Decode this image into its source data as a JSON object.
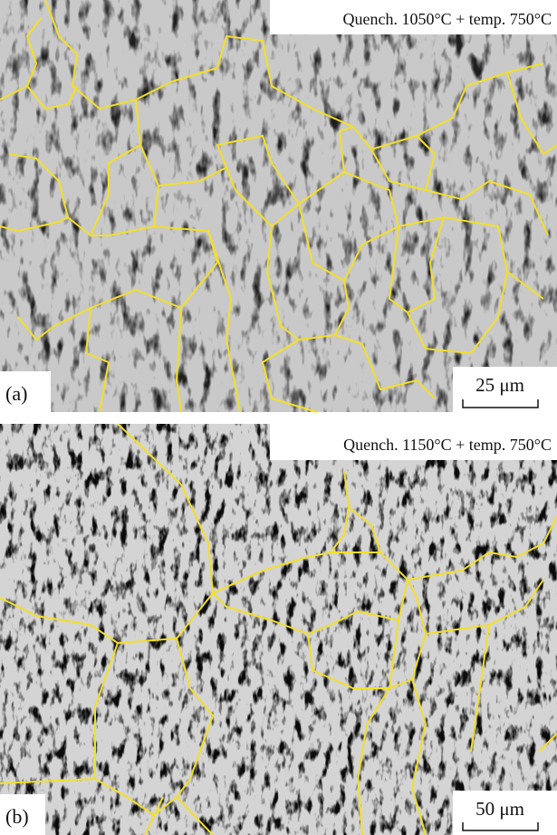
{
  "panels": [
    {
      "caption": "Quench. 1050°C + temp. 750°C",
      "label": "(a)",
      "scale_bar": "25 μm"
    },
    {
      "caption": "Quench. 1150°C + temp. 750°C",
      "label": "(b)",
      "scale_bar": "50 μm"
    }
  ]
}
